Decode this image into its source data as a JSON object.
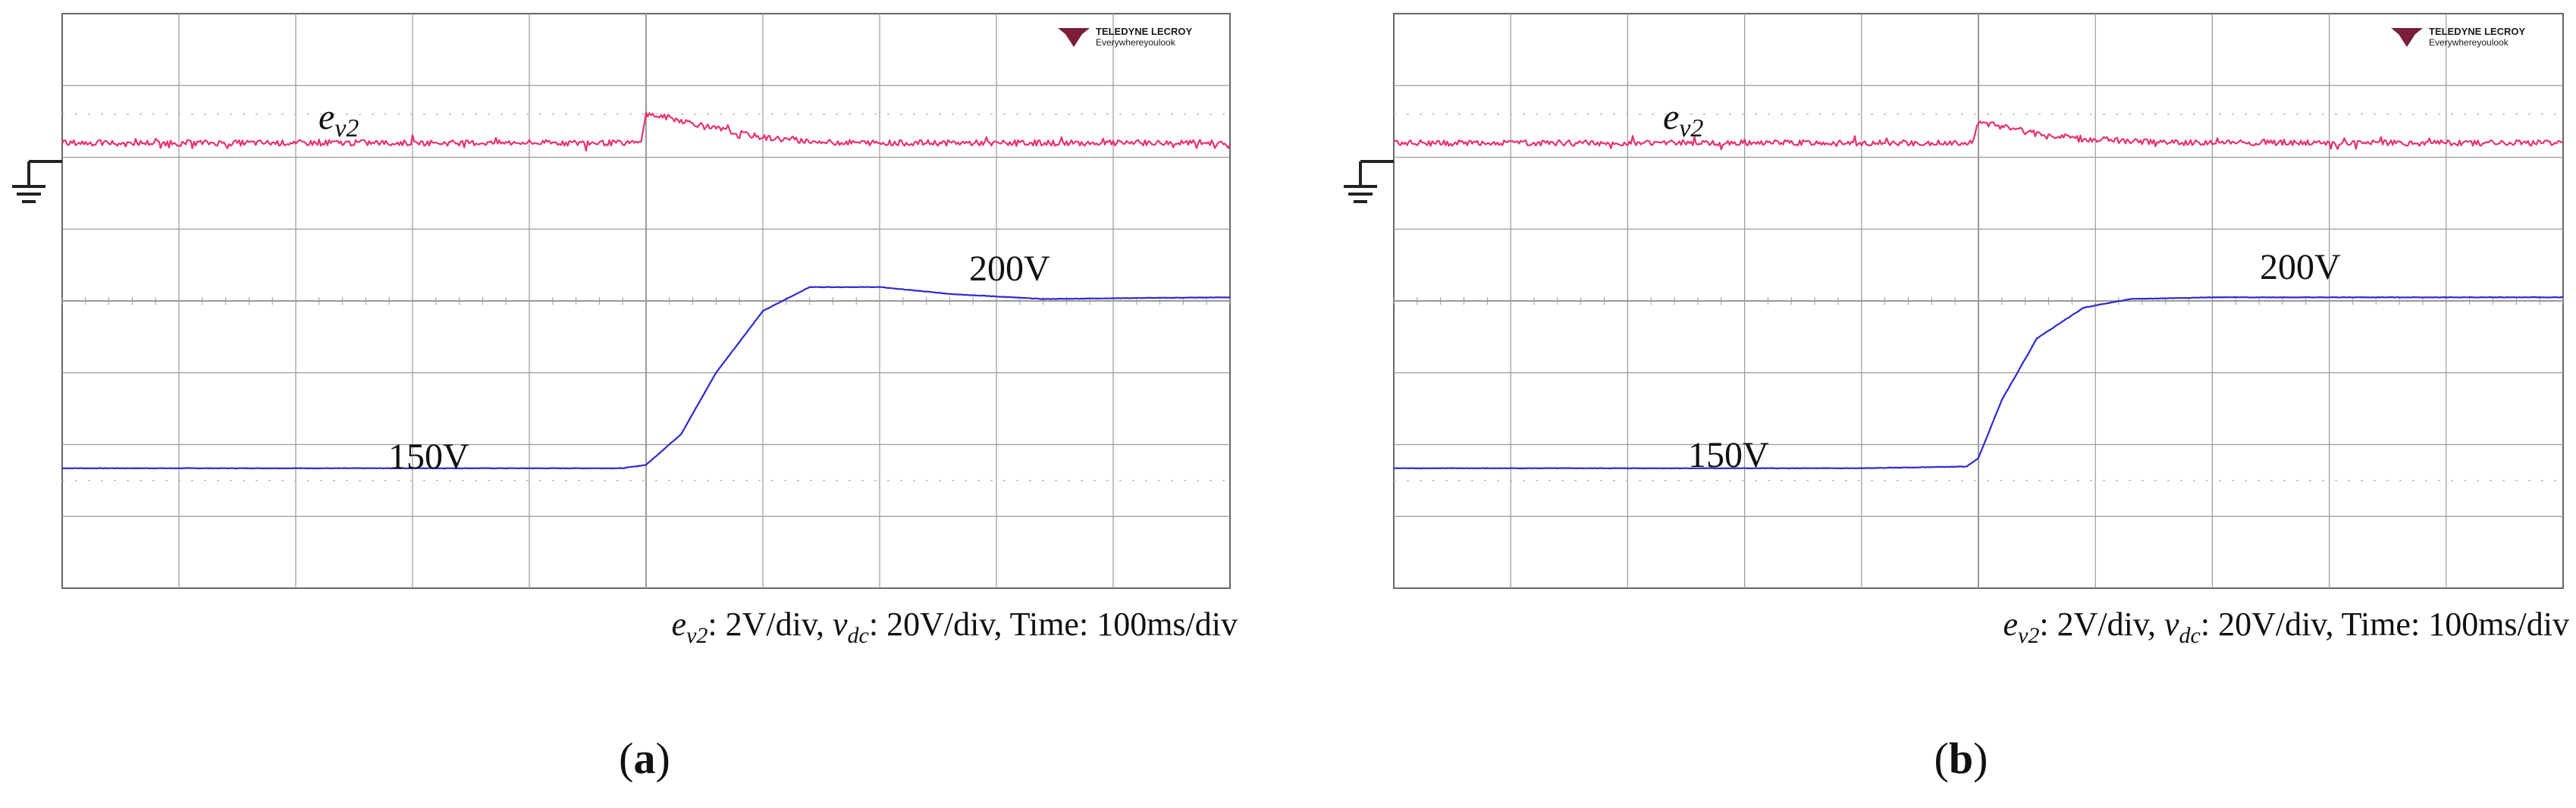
{
  "panels": [
    {
      "id": "a",
      "label_open": "(",
      "label_letter": "a",
      "label_close": ")",
      "brand": {
        "name": "TELEDYNE LECROY",
        "tagline": "Everywhereyoulook"
      },
      "trace_labels": {
        "ev2_main": "e",
        "ev2_sub": "v2",
        "low": "150V",
        "high": "200V"
      },
      "scale": {
        "e_main": "e",
        "e_sub": "v2",
        "e_scale": ": 2V/div, ",
        "v_main": "v",
        "v_sub": "dc",
        "v_scale": ": 20V/div, Time: 100ms/div"
      }
    },
    {
      "id": "b",
      "label_open": "(",
      "label_letter": "b",
      "label_close": ")",
      "brand": {
        "name": "TELEDYNE LECROY",
        "tagline": "Everywhereyoulook"
      },
      "trace_labels": {
        "ev2_main": "e",
        "ev2_sub": "v2",
        "low": "150V",
        "high": "200V"
      },
      "scale": {
        "e_main": "e",
        "e_sub": "v2",
        "e_scale": ": 2V/div, ",
        "v_main": "v",
        "v_sub": "dc",
        "v_scale": ": 20V/div, Time: 100ms/div"
      }
    }
  ],
  "colors": {
    "ev2": "#e8336d",
    "vdc": "#2b2bd0",
    "grid": "#9a9a9a",
    "frame": "#666666"
  },
  "chart_data": [
    {
      "type": "line",
      "panel": "a",
      "x_unit": "div (100ms/div)",
      "xlim": [
        0,
        10
      ],
      "step_time_div": 5,
      "series": [
        {
          "name": "v_dc",
          "x": [
            0,
            1,
            2,
            3,
            4,
            4.8,
            5,
            5.3,
            5.6,
            6,
            6.4,
            7,
            7.6,
            8.4,
            9.2,
            10
          ],
          "y": [
            150,
            150,
            150,
            150,
            150,
            150,
            151,
            160,
            178,
            196,
            203,
            203,
            201,
            199.5,
            199.8,
            200
          ]
        },
        {
          "name": "e_v2",
          "x": [
            0,
            4.95,
            5.0,
            5.2,
            5.6,
            6.0,
            6.5,
            7,
            8,
            9,
            10
          ],
          "y": [
            0,
            0,
            0.8,
            0.7,
            0.4,
            0.15,
            0.02,
            0,
            0,
            0,
            0
          ]
        }
      ]
    },
    {
      "type": "line",
      "panel": "b",
      "x_unit": "div (100ms/div)",
      "xlim": [
        0,
        10
      ],
      "step_time_div": 5,
      "series": [
        {
          "name": "v_dc",
          "x": [
            0,
            1,
            2,
            3,
            4,
            4.9,
            5,
            5.2,
            5.5,
            5.9,
            6.3,
            7,
            8,
            9,
            10
          ],
          "y": [
            150,
            150,
            150,
            150,
            150,
            150.5,
            153,
            170,
            188,
            197,
            199.5,
            200,
            200,
            200,
            200
          ]
        },
        {
          "name": "e_v2",
          "x": [
            0,
            4.95,
            5.0,
            5.2,
            5.5,
            5.9,
            6.4,
            7,
            8,
            9,
            10
          ],
          "y": [
            0,
            0,
            0.6,
            0.45,
            0.25,
            0.12,
            0.03,
            0,
            0,
            0,
            0
          ]
        }
      ]
    }
  ]
}
